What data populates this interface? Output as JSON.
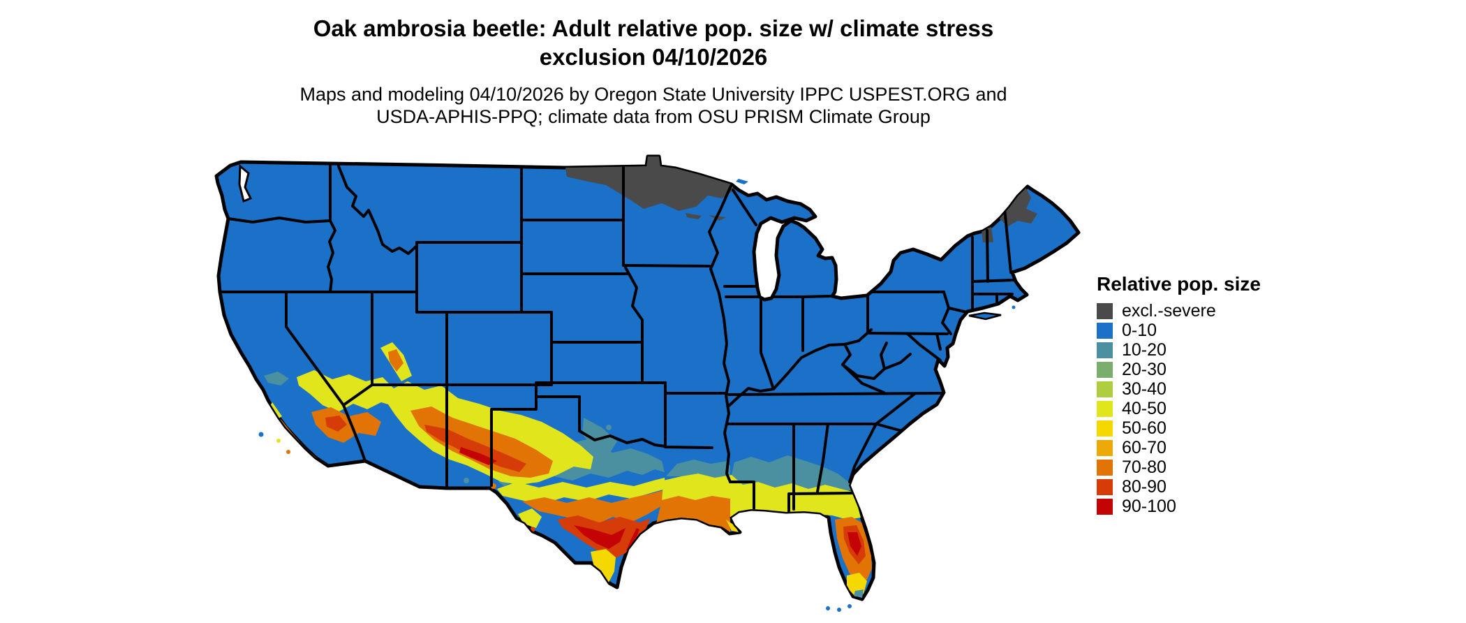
{
  "header": {
    "title": "Oak ambrosia beetle: Adult relative pop. size w/ climate stress\nexclusion 04/10/2026",
    "subtitle": "Maps and modeling 04/10/2026 by Oregon State University IPPC USPEST.ORG and\nUSDA-APHIS-PPQ; climate data from OSU PRISM Climate Group"
  },
  "legend": {
    "title": "Relative pop. size",
    "items": [
      {
        "key": "excl",
        "label": "excl.-severe",
        "color": "#4a4a4a"
      },
      {
        "key": "b0",
        "label": "0-10",
        "color": "#1b70c8"
      },
      {
        "key": "b10",
        "label": "10-20",
        "color": "#4b90a1"
      },
      {
        "key": "b20",
        "label": "20-30",
        "color": "#7bae6d"
      },
      {
        "key": "b30",
        "label": "30-40",
        "color": "#aecd3f"
      },
      {
        "key": "b40",
        "label": "40-50",
        "color": "#e0e51c"
      },
      {
        "key": "b50",
        "label": "50-60",
        "color": "#f5d800"
      },
      {
        "key": "b60",
        "label": "60-70",
        "color": "#eca908"
      },
      {
        "key": "b70",
        "label": "70-80",
        "color": "#e17405"
      },
      {
        "key": "b80",
        "label": "80-90",
        "color": "#d63c08"
      },
      {
        "key": "b90",
        "label": "90-100",
        "color": "#c40305"
      }
    ]
  },
  "map": {
    "type": "choropleth",
    "area": "Contiguous United States with state boundaries",
    "value_shown": "Adult relative population size (0-100) with climate stress exclusion",
    "observations": [
      "Majority of the country shaded 0-10 (blue)",
      "excl.-severe (gray): northern Minnesota / northeastern North Dakota and northern Maine",
      "Highest values (70-100): south-central Texas, southern Arizona, central Florida, southern California valleys, coastal Louisiana",
      "Transitional 10-60 bands across the Gulf Coast states, the south Texas tip, north Florida and the Desert Southwest"
    ]
  },
  "colors": {
    "background": "#ffffff",
    "state_border": "#000000",
    "water": "#ffffff"
  }
}
